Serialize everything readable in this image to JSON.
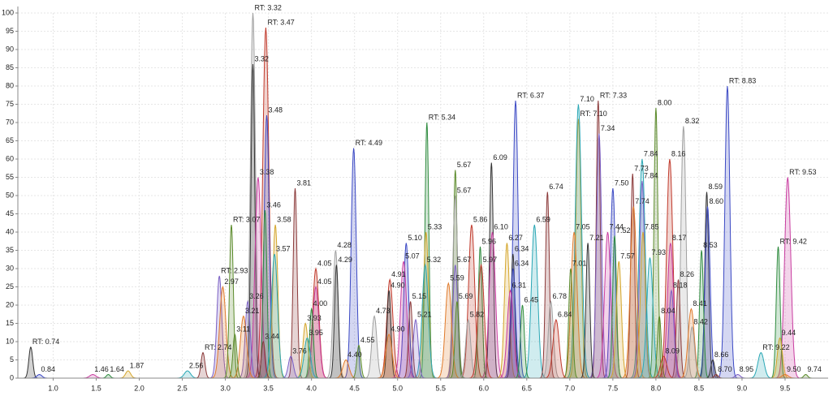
{
  "chart_data": {
    "type": "chromatogram",
    "xlim": [
      0.59,
      10.0
    ],
    "ylim": [
      0,
      100
    ],
    "xticks": [
      {
        "value": 1,
        "label": "1.0"
      },
      {
        "value": 1.5,
        "label": "1.5"
      },
      {
        "value": 2,
        "label": "2.0"
      },
      {
        "value": 2.5,
        "label": "2.5"
      },
      {
        "value": 3,
        "label": "3.0"
      },
      {
        "value": 3.5,
        "label": "3.5"
      },
      {
        "value": 4,
        "label": "4.0"
      },
      {
        "value": 4.5,
        "label": "4.5"
      },
      {
        "value": 5,
        "label": "5.0"
      },
      {
        "value": 5.5,
        "label": "5.5"
      },
      {
        "value": 6,
        "label": "6.0"
      },
      {
        "value": 6.5,
        "label": "6.5"
      },
      {
        "value": 7,
        "label": "7.0"
      },
      {
        "value": 7.5,
        "label": "7.5"
      },
      {
        "value": 8,
        "label": "8.0"
      },
      {
        "value": 8.5,
        "label": "8.5"
      },
      {
        "value": 9,
        "label": "9.0"
      },
      {
        "value": 9.5,
        "label": "9.5"
      }
    ],
    "yticks": [
      0,
      5,
      10,
      15,
      20,
      25,
      30,
      35,
      40,
      45,
      50,
      55,
      60,
      65,
      70,
      75,
      80,
      85,
      90,
      95,
      100
    ],
    "grid": true,
    "colors": [
      "#333333",
      "#3b49c4",
      "#c93da0",
      "#2e8b3e",
      "#d4a52a",
      "#2aa7b5",
      "#8b3a3a",
      "#7a5fc4",
      "#e07a2a",
      "#5a8a2a",
      "#a0a0a0",
      "#c0392b"
    ],
    "x": [
      0.74,
      0.84,
      1.46,
      1.64,
      1.87,
      2.56,
      2.74,
      2.93,
      2.97,
      3.07,
      3.32,
      3.47,
      3.32,
      3.48,
      3.38,
      3.46,
      3.58,
      3.57,
      3.81,
      3.26,
      3.21,
      3.11,
      4.28,
      4.05,
      4.29,
      4.49,
      4.05,
      4.0,
      3.93,
      3.95,
      3.44,
      3.76,
      4.4,
      4.55,
      4.73,
      4.91,
      4.9,
      5.1,
      5.07,
      5.34,
      5.33,
      5.32,
      5.15,
      5.21,
      4.9,
      5.67,
      5.67,
      5.86,
      6.09,
      6.37,
      6.1,
      5.96,
      6.27,
      6.59,
      6.74,
      5.67,
      5.59,
      5.69,
      5.82,
      5.97,
      6.34,
      6.34,
      6.31,
      6.45,
      7.1,
      7.1,
      7.33,
      7.34,
      7.05,
      7.01,
      6.78,
      6.84,
      7.21,
      7.5,
      7.44,
      7.52,
      7.57,
      7.84,
      7.73,
      7.84,
      7.74,
      8.0,
      8.32,
      8.16,
      8.59,
      8.6,
      8.17,
      8.53,
      7.85,
      7.93,
      8.26,
      8.18,
      8.41,
      8.04,
      8.42,
      8.09,
      8.66,
      8.83,
      9.53,
      9.42,
      9.44,
      9.22,
      8.7,
      8.95,
      9.5,
      9.74
    ],
    "values": [
      8.5,
      1,
      1,
      1,
      2,
      2,
      7,
      28,
      25,
      42,
      100,
      96,
      86,
      72,
      55,
      46,
      42,
      34,
      52,
      21,
      17,
      12,
      35,
      30,
      31,
      63,
      25,
      19,
      15,
      11,
      10,
      6,
      5,
      9,
      17,
      27,
      24,
      37,
      32,
      70,
      40,
      31,
      21,
      16,
      12,
      57,
      50,
      42,
      59,
      76,
      40,
      36,
      37,
      42,
      51,
      31,
      26,
      21,
      16,
      31,
      34,
      30,
      24,
      20,
      71,
      75,
      76,
      67,
      40,
      30,
      21,
      16,
      37,
      52,
      40,
      39,
      32,
      60,
      56,
      54,
      47,
      74,
      69,
      60,
      51,
      47,
      37,
      35,
      40,
      33,
      27,
      24,
      19,
      17,
      14,
      6,
      5,
      80,
      55,
      36,
      11,
      7,
      1,
      1,
      1,
      1
    ],
    "labels": [
      "RT: 0.74",
      "0.84",
      "1.46",
      "1.64",
      "1.87",
      "2.56",
      "RT: 2.74",
      "RT: 2.93",
      "2.97",
      "RT: 3.07",
      "RT: 3.32",
      "RT: 3.47",
      "3.32",
      "3.48",
      "3.38",
      "3.46",
      "3.58",
      "3.57",
      "3.81",
      "3.26",
      "3.21",
      "3.11",
      "4.28",
      "4.05",
      "4.29",
      "RT: 4.49",
      "4.05",
      "4.00",
      "3.93",
      "3.95",
      "3.44",
      "3.76",
      "4.40",
      "4.55",
      "4.73",
      "4.91",
      "4.90",
      "5.10",
      "5.07",
      "RT: 5.34",
      "5.33",
      "5.32",
      "5.15",
      "5.21",
      "4.90",
      "5.67",
      "5.67",
      "5.86",
      "6.09",
      "RT: 6.37",
      "6.10",
      "5.96",
      "6.27",
      "6.59",
      "6.74",
      "5.67",
      "5.59",
      "5.69",
      "5.82",
      "5.97",
      "6.34",
      "6.34",
      "6.31",
      "6.45",
      "RT: 7.10",
      "7.10",
      "RT: 7.33",
      "7.34",
      "7.05",
      "7.01",
      "6.78",
      "6.84",
      "7.21",
      "7.50",
      "7.44",
      "7.52",
      "7.57",
      "7.84",
      "7.73",
      "7.84",
      "7.74",
      "8.00",
      "8.32",
      "8.16",
      "8.59",
      "8.60",
      "8.17",
      "8.53",
      "7.85",
      "7.93",
      "8.26",
      "8.18",
      "8.41",
      "8.04",
      "8.42",
      "8.09",
      "8.66",
      "RT: 8.83",
      "RT: 9.53",
      "RT: 9.42",
      "9.44",
      "RT: 9.22",
      "8.70",
      "8.95",
      "9.50",
      "9.74"
    ]
  }
}
